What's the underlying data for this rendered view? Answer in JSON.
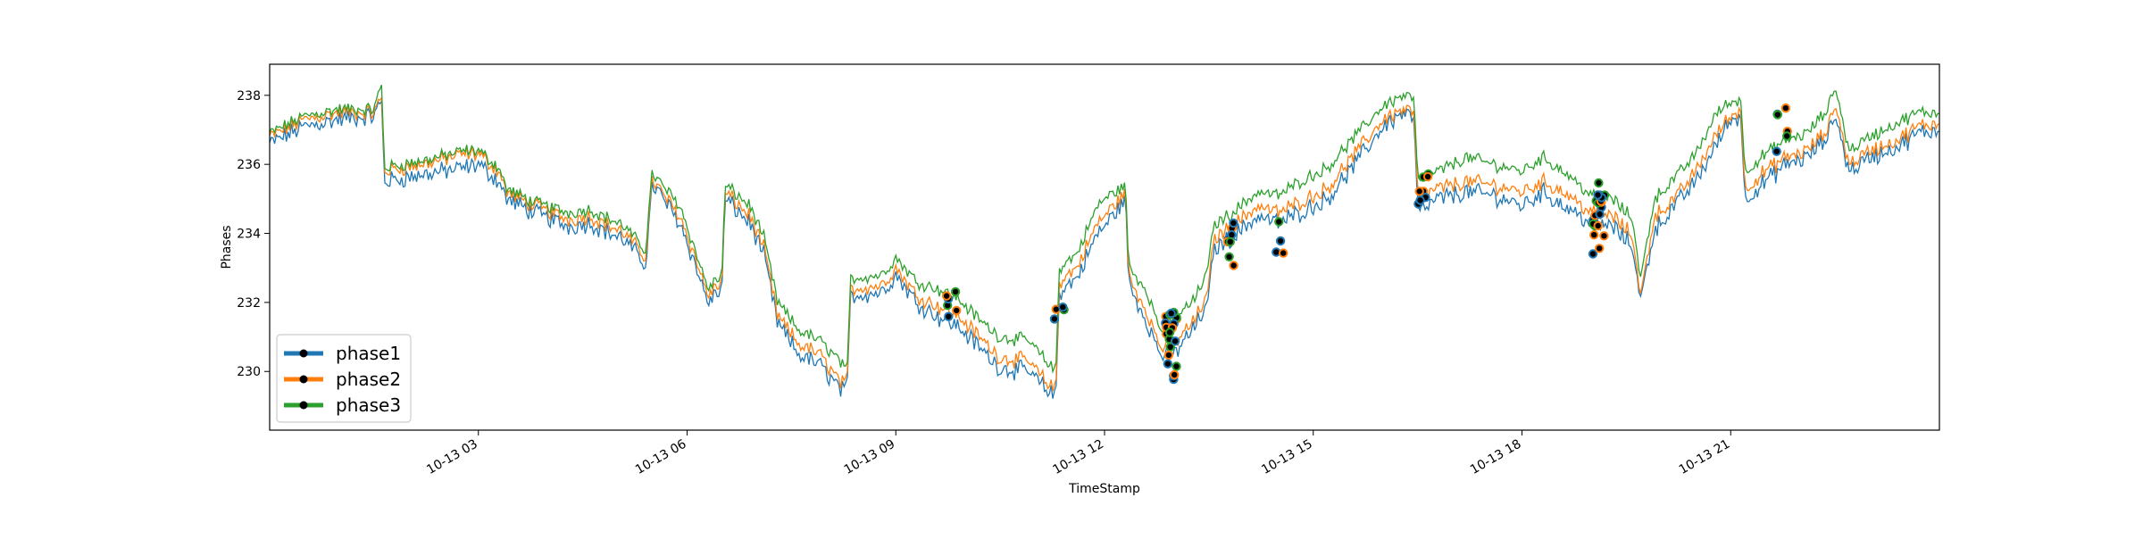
{
  "chart_data": {
    "type": "line",
    "title": "",
    "xlabel": "TimeStamp",
    "ylabel": "Phases",
    "x_range": [
      "10-13 00:00",
      "10-13 24:00"
    ],
    "x_tick_labels": [
      "10-13 03",
      "10-13 06",
      "10-13 09",
      "10-13 12",
      "10-13 15",
      "10-13 18",
      "10-13 21"
    ],
    "x_tick_hours": [
      3,
      6,
      9,
      12,
      15,
      18,
      21
    ],
    "ylim": [
      228.3,
      238.9
    ],
    "y_ticks": [
      230,
      232,
      234,
      236,
      238
    ],
    "grid": false,
    "legend_position": "lower-left",
    "x_unit": "hour of 10-13",
    "series": [
      {
        "name": "phase1",
        "color": "#1f77b4",
        "offset_from_phase3": -0.3,
        "x": [
          0,
          0.5,
          1,
          1.5,
          1.62,
          1.64,
          2.2,
          2.8,
          3.0,
          3.3,
          3.4,
          3.8,
          4.3,
          4.6,
          5.1,
          5.4,
          5.5,
          5.55,
          5.9,
          6.1,
          6.3,
          6.5,
          6.55,
          6.9,
          7.1,
          7.3,
          7.6,
          7.9,
          8.2,
          8.3,
          8.35,
          8.8,
          9.0,
          9.3,
          9.6,
          9.9,
          10.2,
          10.5,
          10.9,
          11.2,
          11.3,
          11.35,
          11.6,
          11.9,
          12.0,
          12.3,
          12.35,
          12.6,
          12.8,
          13.0,
          13.3,
          13.5,
          13.55,
          13.9,
          14.2,
          14.5,
          14.8,
          15.2,
          15.6,
          16.0,
          16.3,
          16.45,
          16.5,
          16.8,
          17.2,
          17.6,
          18.0,
          18.3,
          18.6,
          19.0,
          19.3,
          19.6,
          19.7,
          19.9,
          20.2,
          20.5,
          20.8,
          21.0,
          21.15,
          21.2,
          21.5,
          21.8,
          22.1,
          22.4,
          22.5,
          22.7,
          23.0,
          23.4,
          23.7,
          24.0
        ],
        "y": [
          236.6,
          237.1,
          237.3,
          237.4,
          237.9,
          235.5,
          235.7,
          235.9,
          236.0,
          235.5,
          235.0,
          234.6,
          234.2,
          234.3,
          233.8,
          233.1,
          235.4,
          235.3,
          234.3,
          233.2,
          232.0,
          232.4,
          235.0,
          234.3,
          233.4,
          231.4,
          230.5,
          230.2,
          229.5,
          229.4,
          232.2,
          232.3,
          232.8,
          232.0,
          231.6,
          231.3,
          230.7,
          230.1,
          230.0,
          229.4,
          229.3,
          232.3,
          232.7,
          234.0,
          234.2,
          235.0,
          232.5,
          231.5,
          230.5,
          230.5,
          231.3,
          232.0,
          233.5,
          234.0,
          234.5,
          234.3,
          234.6,
          235.0,
          236.0,
          237.1,
          237.5,
          237.3,
          234.6,
          235.0,
          235.2,
          235.1,
          234.8,
          235.2,
          234.8,
          234.3,
          234.2,
          233.6,
          232.0,
          234.1,
          234.8,
          235.5,
          236.6,
          237.3,
          237.4,
          235.0,
          235.5,
          236.0,
          236.2,
          236.8,
          237.5,
          235.8,
          236.2,
          236.5,
          236.9,
          237.0
        ]
      },
      {
        "name": "phase2",
        "color": "#ff7f0e",
        "offset_from_phase3": -0.15,
        "x": [
          0,
          0.5,
          1,
          1.5,
          1.62,
          1.64,
          2.2,
          2.8,
          3.0,
          3.3,
          3.4,
          3.8,
          4.3,
          4.6,
          5.1,
          5.4,
          5.5,
          5.55,
          5.9,
          6.1,
          6.3,
          6.5,
          6.55,
          6.9,
          7.1,
          7.3,
          7.6,
          7.9,
          8.2,
          8.3,
          8.35,
          8.8,
          9.0,
          9.3,
          9.6,
          9.9,
          10.2,
          10.5,
          10.9,
          11.2,
          11.3,
          11.35,
          11.6,
          11.9,
          12.0,
          12.3,
          12.35,
          12.6,
          12.8,
          13.0,
          13.3,
          13.5,
          13.55,
          13.9,
          14.2,
          14.5,
          14.8,
          15.2,
          15.6,
          16.0,
          16.3,
          16.45,
          16.5,
          16.8,
          17.2,
          17.6,
          18.0,
          18.3,
          18.6,
          19.0,
          19.3,
          19.6,
          19.7,
          19.9,
          20.2,
          20.5,
          20.8,
          21.0,
          21.15,
          21.2,
          21.5,
          21.8,
          22.1,
          22.4,
          22.5,
          22.7,
          23.0,
          23.4,
          23.7,
          24.0
        ],
        "y": [
          236.8,
          237.3,
          237.5,
          237.5,
          238.0,
          235.8,
          236.0,
          236.3,
          236.3,
          235.8,
          235.2,
          234.8,
          234.4,
          234.5,
          234.0,
          233.3,
          235.6,
          235.4,
          234.5,
          233.4,
          232.2,
          232.6,
          235.2,
          234.5,
          233.6,
          231.6,
          230.8,
          230.5,
          229.7,
          229.6,
          232.4,
          232.5,
          233.0,
          232.2,
          231.9,
          231.6,
          231.0,
          230.4,
          230.3,
          229.6,
          229.5,
          232.6,
          233.0,
          234.3,
          234.5,
          235.2,
          232.7,
          231.8,
          230.7,
          230.8,
          231.5,
          232.3,
          233.8,
          234.3,
          234.8,
          234.6,
          234.9,
          235.3,
          236.3,
          237.3,
          237.6,
          237.5,
          235.0,
          235.3,
          235.5,
          235.4,
          235.2,
          235.5,
          235.2,
          234.6,
          234.5,
          233.9,
          232.1,
          234.5,
          235.0,
          235.8,
          236.9,
          237.4,
          237.6,
          235.3,
          235.8,
          236.2,
          236.4,
          237.0,
          237.8,
          236.0,
          236.4,
          236.7,
          237.1,
          237.2
        ]
      },
      {
        "name": "phase3",
        "color": "#2ca02c",
        "offset_from_phase3": 0.0,
        "x": [
          0,
          0.5,
          1,
          1.5,
          1.62,
          1.64,
          2.2,
          2.8,
          3.0,
          3.3,
          3.4,
          3.8,
          4.3,
          4.6,
          5.1,
          5.4,
          5.5,
          5.55,
          5.9,
          6.1,
          6.3,
          6.5,
          6.55,
          6.9,
          7.1,
          7.3,
          7.6,
          7.9,
          8.2,
          8.3,
          8.35,
          8.8,
          9.0,
          9.3,
          9.6,
          9.9,
          10.2,
          10.5,
          10.9,
          11.2,
          11.3,
          11.35,
          11.6,
          11.9,
          12.0,
          12.3,
          12.35,
          12.6,
          12.8,
          13.0,
          13.3,
          13.5,
          13.55,
          13.9,
          14.2,
          14.5,
          14.8,
          15.2,
          15.6,
          16.0,
          16.3,
          16.45,
          16.5,
          16.8,
          17.2,
          17.6,
          18.0,
          18.3,
          18.6,
          19.0,
          19.3,
          19.6,
          19.7,
          19.9,
          20.2,
          20.5,
          20.8,
          21.0,
          21.15,
          21.2,
          21.5,
          21.8,
          22.1,
          22.4,
          22.5,
          22.7,
          23.0,
          23.4,
          23.7,
          24.0
        ],
        "y": [
          236.9,
          237.4,
          237.6,
          237.6,
          238.4,
          235.9,
          236.1,
          236.4,
          236.4,
          235.9,
          235.3,
          234.9,
          234.6,
          234.7,
          234.2,
          233.5,
          235.8,
          235.6,
          234.8,
          233.6,
          232.4,
          232.8,
          235.4,
          234.8,
          233.9,
          232.0,
          231.2,
          230.9,
          230.3,
          229.9,
          232.7,
          232.8,
          233.3,
          232.6,
          232.4,
          232.1,
          231.5,
          231.0,
          230.9,
          230.2,
          230.0,
          233.0,
          233.4,
          234.8,
          235.0,
          235.4,
          233.0,
          232.4,
          231.2,
          231.5,
          232.1,
          233.0,
          234.2,
          234.7,
          235.2,
          235.1,
          235.5,
          235.9,
          236.8,
          237.7,
          238.0,
          237.9,
          235.5,
          235.8,
          236.2,
          236.0,
          235.8,
          236.2,
          235.8,
          235.1,
          235.0,
          234.4,
          232.6,
          235.0,
          235.6,
          236.3,
          237.5,
          237.8,
          237.9,
          235.8,
          236.3,
          236.7,
          236.9,
          237.6,
          238.3,
          236.4,
          236.8,
          237.2,
          237.5,
          237.5
        ]
      }
    ],
    "marker_clusters": [
      {
        "x": 9.8,
        "y_center": 232.3,
        "spread": 1.0,
        "count": 6
      },
      {
        "x": 11.35,
        "y_center": 232.2,
        "spread": 1.0,
        "count": 4
      },
      {
        "x": 12.95,
        "y_center": 231.0,
        "spread": 2.0,
        "count": 22
      },
      {
        "x": 13.85,
        "y_center": 233.9,
        "spread": 1.4,
        "count": 8
      },
      {
        "x": 14.55,
        "y_center": 233.9,
        "spread": 1.0,
        "count": 4
      },
      {
        "x": 16.6,
        "y_center": 235.2,
        "spread": 1.2,
        "count": 8
      },
      {
        "x": 19.1,
        "y_center": 234.6,
        "spread": 1.8,
        "count": 20
      },
      {
        "x": 21.75,
        "y_center": 237.2,
        "spread": 1.2,
        "count": 6
      }
    ]
  }
}
